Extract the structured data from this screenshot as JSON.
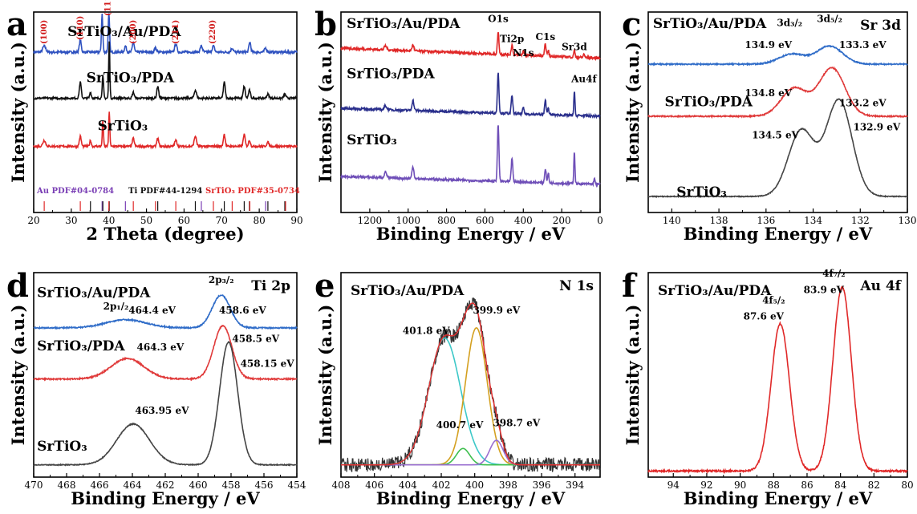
{
  "chart_data": [
    {
      "id": "a",
      "type": "line",
      "panel_letter": "a",
      "xlabel": "2 Theta (degree)",
      "ylabel": "Intensity (a.u.)",
      "xlim": [
        20,
        90
      ],
      "xticks": [
        20,
        30,
        40,
        50,
        60,
        70,
        80,
        90
      ],
      "reverse_x": false,
      "colors": {
        "red": "#e02828",
        "black": "#111111",
        "blue": "#2f52c0",
        "purple": "#7a3fb5"
      },
      "series": [
        {
          "name": "SrTiO₃/Au/PDA",
          "color": "#2f52c0",
          "baseline": 0.8,
          "noise": 0.006,
          "peaks": [
            [
              22.8,
              0.03,
              0.4
            ],
            [
              32.4,
              0.06,
              0.25
            ],
            [
              38.2,
              0.19,
              0.18
            ],
            [
              40.0,
              0.19,
              0.18
            ],
            [
              44.4,
              0.03,
              0.25
            ],
            [
              46.5,
              0.05,
              0.25
            ],
            [
              52.4,
              0.02,
              0.3
            ],
            [
              57.8,
              0.04,
              0.3
            ],
            [
              64.6,
              0.03,
              0.3
            ],
            [
              67.8,
              0.03,
              0.3
            ],
            [
              72.8,
              0.02,
              0.3
            ],
            [
              77.5,
              0.05,
              0.25
            ],
            [
              81.7,
              0.02,
              0.3
            ]
          ]
        },
        {
          "name": "SrTiO₃/PDA",
          "color": "#111111",
          "baseline": 0.57,
          "noise": 0.005,
          "peaks": [
            [
              32.4,
              0.08,
              0.25
            ],
            [
              35.1,
              0.03,
              0.2
            ],
            [
              38.4,
              0.11,
              0.18
            ],
            [
              40.1,
              0.28,
              0.15
            ],
            [
              46.5,
              0.03,
              0.25
            ],
            [
              53.0,
              0.06,
              0.25
            ],
            [
              63.0,
              0.04,
              0.3
            ],
            [
              70.7,
              0.08,
              0.25
            ],
            [
              76.0,
              0.06,
              0.25
            ],
            [
              77.4,
              0.04,
              0.25
            ],
            [
              82.3,
              0.02,
              0.3
            ],
            [
              86.8,
              0.02,
              0.3
            ]
          ]
        },
        {
          "name": "SrTiO₃",
          "color": "#e02828",
          "baseline": 0.33,
          "noise": 0.005,
          "peaks": [
            [
              22.8,
              0.03,
              0.35
            ],
            [
              32.4,
              0.05,
              0.25
            ],
            [
              35.1,
              0.03,
              0.2
            ],
            [
              38.4,
              0.13,
              0.15
            ],
            [
              40.1,
              0.17,
              0.15
            ],
            [
              46.5,
              0.04,
              0.25
            ],
            [
              53.0,
              0.04,
              0.25
            ],
            [
              57.8,
              0.03,
              0.3
            ],
            [
              63.0,
              0.05,
              0.3
            ],
            [
              70.7,
              0.06,
              0.25
            ],
            [
              76.0,
              0.06,
              0.25
            ],
            [
              77.4,
              0.03,
              0.25
            ],
            [
              82.3,
              0.02,
              0.3
            ]
          ]
        }
      ],
      "series_label_pos": [
        [
          29,
          0.88
        ],
        [
          34,
          0.65
        ],
        [
          37,
          0.41
        ]
      ],
      "hkl_annotations": [
        {
          "label": "(100)",
          "x": 22.8,
          "y": 0.84
        },
        {
          "label": "(110)",
          "x": 32.4,
          "y": 0.86
        },
        {
          "label": "(111)",
          "x": 39.7,
          "y": 0.98
        },
        {
          "label": "(200)",
          "x": 46.5,
          "y": 0.84
        },
        {
          "label": "(211)",
          "x": 57.8,
          "y": 0.84
        },
        {
          "label": "(220)",
          "x": 67.6,
          "y": 0.84
        }
      ],
      "reference_labels": [
        {
          "text": "Au PDF#04-0784",
          "color": "#7a3fb5"
        },
        {
          "text": "Ti PDF#44-1294",
          "color": "#111111"
        },
        {
          "text": "SrTiO₃ PDF#35-0734",
          "color": "#e02828"
        }
      ],
      "reference_lines": [
        {
          "x": 22.8,
          "color": "#e02828"
        },
        {
          "x": 32.4,
          "color": "#e02828"
        },
        {
          "x": 35.1,
          "color": "#111111"
        },
        {
          "x": 38.2,
          "color": "#7a3fb5"
        },
        {
          "x": 38.4,
          "color": "#111111"
        },
        {
          "x": 40.1,
          "color": "#111111"
        },
        {
          "x": 40.0,
          "color": "#e02828"
        },
        {
          "x": 44.4,
          "color": "#7a3fb5"
        },
        {
          "x": 46.5,
          "color": "#e02828"
        },
        {
          "x": 53.0,
          "color": "#111111"
        },
        {
          "x": 52.4,
          "color": "#e02828"
        },
        {
          "x": 57.8,
          "color": "#e02828"
        },
        {
          "x": 63.0,
          "color": "#111111"
        },
        {
          "x": 64.6,
          "color": "#7a3fb5"
        },
        {
          "x": 67.8,
          "color": "#e02828"
        },
        {
          "x": 70.7,
          "color": "#111111"
        },
        {
          "x": 72.8,
          "color": "#e02828"
        },
        {
          "x": 76.0,
          "color": "#111111"
        },
        {
          "x": 77.4,
          "color": "#111111"
        },
        {
          "x": 77.5,
          "color": "#e02828"
        },
        {
          "x": 81.7,
          "color": "#7a3fb5"
        },
        {
          "x": 82.3,
          "color": "#111111"
        },
        {
          "x": 86.8,
          "color": "#111111"
        },
        {
          "x": 87.0,
          "color": "#e02828"
        }
      ]
    },
    {
      "id": "b",
      "type": "line",
      "panel_letter": "b",
      "xlabel": "Binding Energy / eV",
      "ylabel": "Intensity (a.u.)",
      "xlim": [
        1350,
        0
      ],
      "xticks": [
        1200,
        1000,
        800,
        600,
        400,
        200,
        0
      ],
      "reverse_x": true,
      "series": [
        {
          "name": "SrTiO₃/Au/PDA",
          "color": "#e02828",
          "baseline": 0.77,
          "slope": 0.05,
          "noise": 0.006,
          "peaks": [
            [
              1118,
              0.02,
              6
            ],
            [
              975,
              0.03,
              5
            ],
            [
              531,
              0.11,
              4
            ],
            [
              459,
              0.05,
              4
            ],
            [
              400,
              0.02,
              4
            ],
            [
              285,
              0.06,
              4
            ],
            [
              270,
              0.03,
              3
            ],
            [
              134,
              0.04,
              3
            ],
            [
              84,
              0.02,
              3
            ]
          ]
        },
        {
          "name": "SrTiO₃/PDA",
          "color": "#2a2f8c",
          "baseline": 0.48,
          "slope": 0.04,
          "noise": 0.006,
          "peaks": [
            [
              1118,
              0.02,
              6
            ],
            [
              975,
              0.05,
              5
            ],
            [
              531,
              0.2,
              4
            ],
            [
              459,
              0.09,
              4
            ],
            [
              400,
              0.03,
              4
            ],
            [
              285,
              0.07,
              4
            ],
            [
              270,
              0.04,
              3
            ],
            [
              134,
              0.12,
              3
            ]
          ]
        },
        {
          "name": "SrTiO₃",
          "color": "#6f4fb8",
          "baseline": 0.14,
          "slope": 0.04,
          "noise": 0.006,
          "peaks": [
            [
              1118,
              0.03,
              6
            ],
            [
              975,
              0.06,
              5
            ],
            [
              531,
              0.28,
              4
            ],
            [
              459,
              0.12,
              4
            ],
            [
              285,
              0.07,
              4
            ],
            [
              270,
              0.05,
              3
            ],
            [
              134,
              0.16,
              3
            ],
            [
              30,
              0.03,
              3
            ]
          ]
        }
      ],
      "series_label_pos": [
        [
          1320,
          0.92
        ],
        [
          1320,
          0.67
        ],
        [
          1320,
          0.34
        ]
      ],
      "peak_annotations": [
        {
          "label": "O1s",
          "x": 531,
          "y": 0.95
        },
        {
          "label": "Ti2p",
          "x": 459,
          "y": 0.85
        },
        {
          "label": "N1s",
          "x": 400,
          "y": 0.78
        },
        {
          "label": "C1s",
          "x": 285,
          "y": 0.86
        },
        {
          "label": "Sr3d",
          "x": 134,
          "y": 0.81
        },
        {
          "label": "Au4f",
          "x": 84,
          "y": 0.65
        }
      ]
    },
    {
      "id": "c",
      "type": "line",
      "panel_letter": "c",
      "xlabel": "Binding Energy / eV",
      "ylabel": "Intensity (a.u.)",
      "xlim": [
        141,
        130
      ],
      "xticks": [
        140,
        138,
        136,
        134,
        132,
        130
      ],
      "reverse_x": true,
      "corner_label": "Sr 3d",
      "series": [
        {
          "name": "SrTiO₃/Au/PDA",
          "color": "#2f6cc8",
          "baseline": 0.74,
          "noise": 0.003,
          "peaks": [
            [
              134.9,
              0.05,
              0.55
            ],
            [
              133.3,
              0.09,
              0.55
            ]
          ]
        },
        {
          "name": "SrTiO₃/PDA",
          "color": "#e03a3a",
          "baseline": 0.48,
          "noise": 0.003,
          "peaks": [
            [
              134.8,
              0.14,
              0.55
            ],
            [
              133.2,
              0.24,
              0.55
            ]
          ]
        },
        {
          "name": "SrTiO₃",
          "color": "#444444",
          "baseline": 0.08,
          "noise": 0.002,
          "peaks": [
            [
              134.5,
              0.33,
              0.55
            ],
            [
              132.9,
              0.48,
              0.55
            ]
          ]
        }
      ],
      "series_label_pos": [
        [
          140.8,
          0.92
        ],
        [
          140.3,
          0.53
        ],
        [
          139.8,
          0.08
        ]
      ],
      "annotations": [
        {
          "label": "3d₃/₂",
          "x": 135.0,
          "y": 0.93
        },
        {
          "label": "3d₅/₂",
          "x": 133.3,
          "y": 0.95
        },
        {
          "label": "134.9 eV",
          "x": 135.9,
          "y": 0.82
        },
        {
          "label": "133.3 eV",
          "x": 131.9,
          "y": 0.82
        },
        {
          "label": "134.8 eV",
          "x": 135.9,
          "y": 0.58
        },
        {
          "label": "133.2 eV",
          "x": 131.9,
          "y": 0.53
        },
        {
          "label": "134.5 eV",
          "x": 135.6,
          "y": 0.37
        },
        {
          "label": "132.9 eV",
          "x": 131.3,
          "y": 0.41
        }
      ]
    },
    {
      "id": "d",
      "type": "line",
      "panel_letter": "d",
      "xlabel": "Binding Energy / eV",
      "ylabel": "Intensity (a.u.)",
      "xlim": [
        470,
        454
      ],
      "xticks": [
        470,
        468,
        466,
        464,
        462,
        460,
        458,
        456,
        454
      ],
      "reverse_x": true,
      "corner_label": "Ti 2p",
      "series": [
        {
          "name": "SrTiO₃/Au/PDA",
          "color": "#2f6cc8",
          "baseline": 0.73,
          "noise": 0.003,
          "peaks": [
            [
              464.4,
              0.04,
              1.2
            ],
            [
              458.6,
              0.16,
              0.55
            ]
          ]
        },
        {
          "name": "SrTiO₃/PDA",
          "color": "#e03a3a",
          "baseline": 0.48,
          "noise": 0.003,
          "peaks": [
            [
              464.3,
              0.1,
              1.0
            ],
            [
              458.5,
              0.26,
              0.55
            ]
          ]
        },
        {
          "name": "SrTiO₃",
          "color": "#444444",
          "baseline": 0.06,
          "noise": 0.002,
          "peaks": [
            [
              463.95,
              0.2,
              1.0
            ],
            [
              458.15,
              0.6,
              0.55
            ]
          ]
        }
      ],
      "series_label_pos": [
        [
          469.8,
          0.88
        ],
        [
          469.8,
          0.62
        ],
        [
          469.8,
          0.13
        ]
      ],
      "annotations": [
        {
          "label": "2p₁/₂",
          "x": 465.0,
          "y": 0.82
        },
        {
          "label": "2p₃/₂",
          "x": 458.6,
          "y": 0.95
        },
        {
          "label": "464.4 eV",
          "x": 462.8,
          "y": 0.8
        },
        {
          "label": "458.6 eV",
          "x": 457.3,
          "y": 0.8
        },
        {
          "label": "464.3 eV",
          "x": 462.3,
          "y": 0.62
        },
        {
          "label": "458.5 eV",
          "x": 456.5,
          "y": 0.66
        },
        {
          "label": "463.95 eV",
          "x": 462.2,
          "y": 0.31
        },
        {
          "label": "458.15 eV",
          "x": 455.8,
          "y": 0.54
        }
      ]
    },
    {
      "id": "e",
      "type": "line",
      "panel_letter": "e",
      "xlabel": "Binding Energy / eV",
      "ylabel": "Intensity (a.u.)",
      "xlim": [
        408,
        392.5
      ],
      "xticks": [
        408,
        406,
        404,
        402,
        400,
        398,
        396,
        394
      ],
      "reverse_x": true,
      "corner_label": "N 1s",
      "title_label": "SrTiO₃/Au/PDA",
      "baseline": 0.06,
      "components": [
        {
          "name": "401.8 eV",
          "color": "#3cc8c8",
          "center": 401.8,
          "amp": 0.62,
          "sigma": 0.95
        },
        {
          "name": "399.9 eV",
          "color": "#d4a020",
          "center": 399.9,
          "amp": 0.67,
          "sigma": 0.65
        },
        {
          "name": "400.7 eV",
          "color": "#3fbf4f",
          "center": 400.7,
          "amp": 0.08,
          "sigma": 0.4
        },
        {
          "name": "398.7 eV",
          "color": "#9a6fd0",
          "center": 398.7,
          "amp": 0.12,
          "sigma": 0.4
        }
      ],
      "raw_color": "#333333",
      "envelope_color": "#e03030",
      "annotations": [
        {
          "label": "401.8 eV",
          "x": 402.9,
          "y": 0.7
        },
        {
          "label": "399.9 eV",
          "x": 398.7,
          "y": 0.8
        },
        {
          "label": "400.7 eV",
          "x": 400.9,
          "y": 0.24
        },
        {
          "label": "398.7 eV",
          "x": 397.5,
          "y": 0.25
        }
      ]
    },
    {
      "id": "f",
      "type": "line",
      "panel_letter": "f",
      "xlabel": "Binding Energy / eV",
      "ylabel": "Intensity (a.u.)",
      "xlim": [
        95.5,
        80
      ],
      "xticks": [
        94,
        92,
        90,
        88,
        86,
        84,
        82,
        80
      ],
      "reverse_x": true,
      "corner_label": "Au 4f",
      "title_label": "SrTiO₃/Au/PDA",
      "series": [
        {
          "name": "SrTiO₃/Au/PDA",
          "color": "#e02828",
          "baseline": 0.03,
          "noise": 0.004,
          "peaks": [
            [
              87.6,
              0.72,
              0.55
            ],
            [
              83.9,
              0.9,
              0.55
            ]
          ]
        }
      ],
      "annotations": [
        {
          "label": "4f₇/₂",
          "x": 84.4,
          "y": 0.98
        },
        {
          "label": "83.9 eV",
          "x": 85.0,
          "y": 0.9
        },
        {
          "label": "4f₅/₂",
          "x": 88.0,
          "y": 0.85
        },
        {
          "label": "87.6 eV",
          "x": 88.6,
          "y": 0.77
        }
      ]
    }
  ]
}
